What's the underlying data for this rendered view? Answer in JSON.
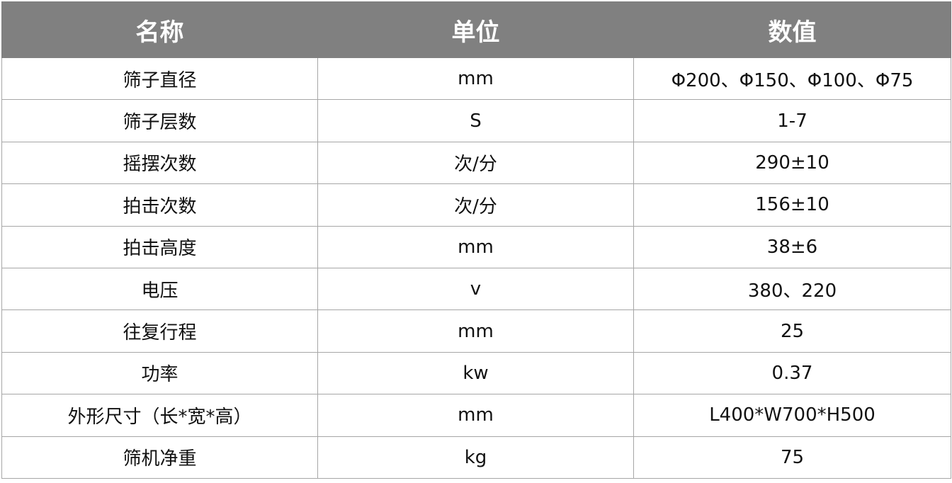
{
  "header": {
    "name": "名称",
    "unit": "单位",
    "value": "数值"
  },
  "rows": [
    {
      "name": "筛子直径",
      "unit": "mm",
      "value": "Φ200、Φ150、Φ100、Φ75"
    },
    {
      "name": "筛子层数",
      "unit": "S",
      "value": "1-7"
    },
    {
      "name": "摇摆次数",
      "unit": "次/分",
      "value": "290±10"
    },
    {
      "name": "拍击次数",
      "unit": "次/分",
      "value": "156±10"
    },
    {
      "name": "拍击高度",
      "unit": "mm",
      "value": "38±6"
    },
    {
      "name": "电压",
      "unit": "v",
      "value": "380、220"
    },
    {
      "name": "往复行程",
      "unit": "mm",
      "value": "25"
    },
    {
      "name": "功率",
      "unit": "kw",
      "value": "0.37"
    },
    {
      "name": "外形尺寸（长*宽*高）",
      "unit": "mm",
      "value": "L400*W700*H500"
    },
    {
      "name": "筛机净重",
      "unit": "kg",
      "value": "75"
    }
  ],
  "colors": {
    "header_bg": "#808080",
    "header_text": "#ffffff",
    "border": "#a6a6a6"
  }
}
